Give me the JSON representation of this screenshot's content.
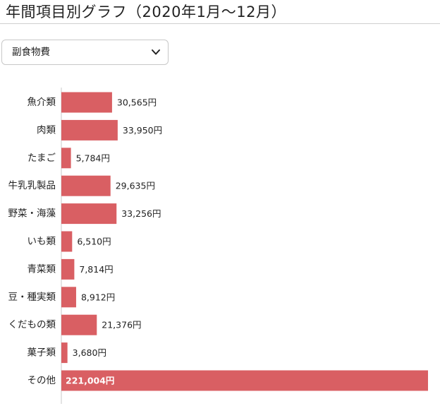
{
  "header": {
    "title": "年間項目別グラフ（2020年1月〜12月）"
  },
  "filter": {
    "selected": "副食物費"
  },
  "colors": {
    "bar": "#d95f63",
    "axis": "#c8c8c8"
  },
  "chart_data": {
    "type": "bar",
    "orientation": "horizontal",
    "categories": [
      "魚介類",
      "肉類",
      "たまご",
      "牛乳乳製品",
      "野菜・海藻",
      "いも類",
      "青菜類",
      "豆・種実類",
      "くだもの類",
      "菓子類",
      "その他"
    ],
    "values": [
      30565,
      33950,
      5784,
      29635,
      33256,
      6510,
      7814,
      8912,
      21376,
      3680,
      221004
    ],
    "value_labels": [
      "30,565円",
      "33,950円",
      "5,784円",
      "29,635円",
      "33,256円",
      "6,510円",
      "7,814円",
      "8,912円",
      "21,376円",
      "3,680円",
      "221,004円"
    ],
    "xlim": [
      0,
      221004
    ],
    "grid": false,
    "legend": "none"
  }
}
